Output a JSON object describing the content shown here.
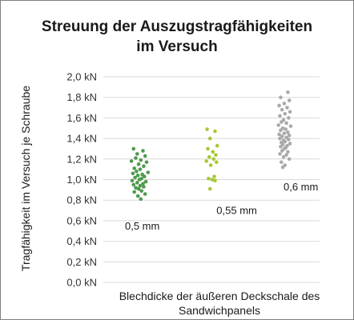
{
  "chart_data": {
    "type": "scatter",
    "title": [
      "Streuung der Auszugstragfähigkeiten",
      "im Versuch"
    ],
    "ylabel": "Tragfähigkeit im Versuch je Schraube",
    "xlabel": [
      "Blechdicke der äußeren Deckschale des",
      "Sandwichpanels"
    ],
    "ylim": [
      0,
      2.0
    ],
    "yticks": [
      0.0,
      0.2,
      0.4,
      0.6,
      0.8,
      1.0,
      1.2,
      1.4,
      1.6,
      1.8,
      2.0
    ],
    "ytick_labels": [
      "0,0 kN",
      "0,2 kN",
      "0,4 kN",
      "0,6 kN",
      "0,8 kN",
      "1,0 kN",
      "1,2 kN",
      "1,4 kN",
      "1,6 kN",
      "1,8 kN",
      "2,0 kN"
    ],
    "y_unit": "kN",
    "grid": true,
    "series": [
      {
        "label": "0,5 mm",
        "color": "#4e9a4e",
        "x": [
          0.92,
          1.05,
          0.97,
          1.08,
          0.95,
          1.02,
          0.89,
          1.1,
          0.99,
          1.06,
          0.93,
          1.01,
          0.96,
          1.12,
          0.91,
          1.04,
          0.98,
          1.07,
          0.94,
          1.03,
          1.0,
          0.9,
          1.09,
          0.97,
          1.05,
          0.92,
          1.01,
          1.06,
          0.95,
          0.99,
          1.03,
          0.93,
          1.08,
          0.98,
          1.02
        ],
        "y": [
          1.3,
          1.28,
          1.25,
          1.23,
          1.21,
          1.19,
          1.18,
          1.17,
          1.15,
          1.13,
          1.11,
          1.1,
          1.08,
          1.07,
          1.06,
          1.05,
          1.04,
          1.03,
          1.02,
          1.01,
          1.0,
          0.99,
          0.98,
          0.97,
          0.96,
          0.95,
          0.94,
          0.93,
          0.92,
          0.91,
          0.89,
          0.88,
          0.86,
          0.84,
          0.81
        ]
      },
      {
        "label": "0,55 mm",
        "color": "#a6c834",
        "x": [
          1.94,
          2.05,
          1.98,
          2.08,
          1.95,
          2.02,
          2.06,
          1.97,
          2.03,
          1.93,
          2.07,
          1.99,
          2.04,
          1.96,
          2.01,
          2.05,
          1.98
        ],
        "y": [
          1.49,
          1.47,
          1.4,
          1.33,
          1.3,
          1.27,
          1.24,
          1.22,
          1.2,
          1.18,
          1.17,
          1.14,
          1.03,
          1.01,
          1.0,
          0.99,
          0.91
        ]
      },
      {
        "label": "0,6 mm",
        "color": "#aaaaaa",
        "x": [
          3.06,
          2.96,
          3.08,
          3.01,
          2.94,
          3.05,
          2.98,
          3.09,
          3.02,
          2.95,
          3.07,
          3.0,
          2.97,
          3.04,
          2.93,
          3.1,
          2.99,
          3.03,
          2.96,
          3.06,
          3.01,
          2.94,
          3.08,
          2.98,
          3.04,
          2.95,
          3.07,
          3.0,
          3.02,
          2.97,
          3.09,
          2.99,
          3.05,
          2.96,
          3.03,
          3.01,
          2.98,
          3.06,
          2.95,
          3.04,
          3.0,
          3.08,
          2.97,
          3.02,
          2.99
        ],
        "y": [
          1.85,
          1.8,
          1.77,
          1.74,
          1.72,
          1.7,
          1.68,
          1.66,
          1.64,
          1.62,
          1.6,
          1.58,
          1.56,
          1.55,
          1.53,
          1.52,
          1.5,
          1.49,
          1.48,
          1.46,
          1.45,
          1.44,
          1.43,
          1.42,
          1.41,
          1.4,
          1.39,
          1.38,
          1.37,
          1.36,
          1.35,
          1.34,
          1.33,
          1.32,
          1.31,
          1.3,
          1.28,
          1.27,
          1.25,
          1.24,
          1.22,
          1.2,
          1.17,
          1.14,
          1.12
        ]
      }
    ]
  }
}
